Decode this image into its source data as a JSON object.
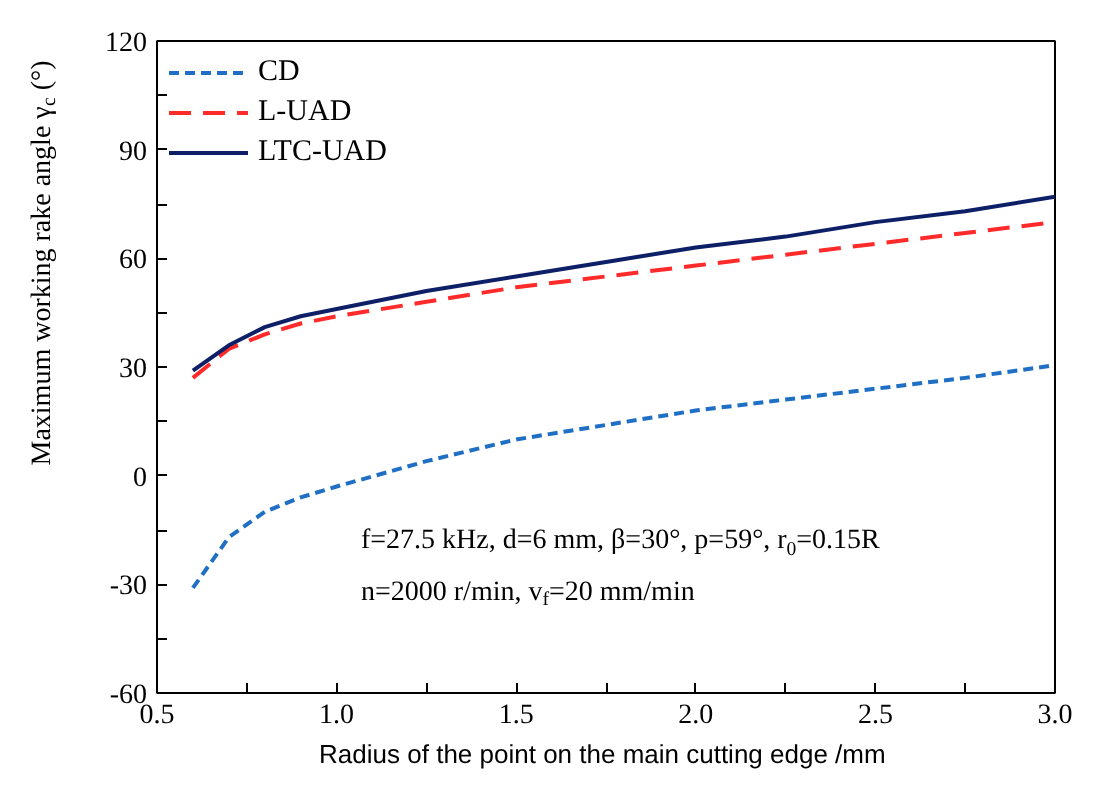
{
  "chart_data": {
    "type": "line",
    "xlabel": "Radius of the point on the main cutting edge  /mm",
    "ylabel": "Maximum working rake angle γ$_{c}$ (°)",
    "x": [
      0.6,
      0.7,
      0.8,
      0.9,
      1.0,
      1.25,
      1.5,
      1.75,
      2.0,
      2.25,
      2.5,
      2.75,
      3.0
    ],
    "series": [
      {
        "name": "CD",
        "color": "#1f6fc4",
        "line_style": "dashed",
        "values": [
          -31,
          -17,
          -10,
          -6,
          -3,
          4,
          10,
          14,
          18,
          21,
          24,
          27,
          30.5
        ]
      },
      {
        "name": "L-UAD",
        "color": "#ff2a2a",
        "line_style": "longdash",
        "values": [
          27,
          35,
          39,
          42,
          44,
          48,
          52,
          55,
          58,
          61,
          64,
          67,
          70
        ]
      },
      {
        "name": "LTC-UAD",
        "color": "#0d1f66",
        "line_style": "solid",
        "values": [
          29,
          36,
          41,
          44,
          46,
          51,
          55,
          59,
          63,
          66,
          70,
          73,
          77
        ]
      }
    ],
    "xlim": [
      0.5,
      3.0
    ],
    "ylim": [
      -60,
      120
    ],
    "xticks": [
      0.5,
      {
        "value": 0.75,
        "label": null
      },
      "1.0",
      {
        "value": 1.25,
        "label": null
      },
      1.5,
      {
        "value": 1.75,
        "label": null
      },
      "2.0",
      {
        "value": 2.25,
        "label": null
      },
      2.5,
      {
        "value": 2.75,
        "label": null
      },
      "3.0"
    ],
    "yticks": [
      -60,
      {
        "value": -45,
        "label": null
      },
      -30,
      {
        "value": -15,
        "label": null
      },
      0,
      {
        "value": 15,
        "label": null
      },
      30,
      {
        "value": 45,
        "label": null
      },
      60,
      {
        "value": 75,
        "label": null
      },
      90,
      {
        "value": 105,
        "label": null
      },
      120
    ],
    "annotations": [
      "f=27.5 kHz, d=6 mm, β=30°, p=59°, r$_{0}$=0.15R",
      "n=2000 r/min, v$_{f}$=20 mm/min"
    ],
    "grid": false,
    "legend": "top left"
  }
}
